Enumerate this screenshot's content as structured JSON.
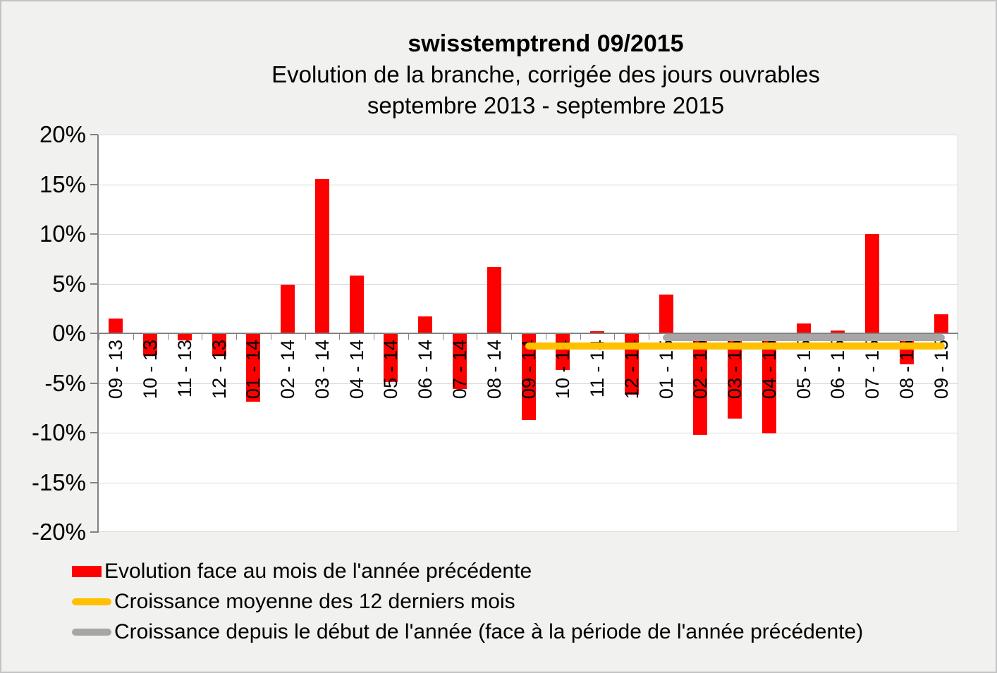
{
  "header": {
    "title": "swisstemptrend 09/2015",
    "subtitle1": "Evolution de la branche, corrigée des jours ouvrables",
    "subtitle2": "septembre 2013 - septembre 2015"
  },
  "chart_data": {
    "type": "bar",
    "title": "swisstemptrend 09/2015",
    "subtitle": "Evolution de la branche, corrigée des jours ouvrables septembre 2013 - septembre 2015",
    "categories": [
      "09 - 13",
      "10 - 13",
      "11 - 13",
      "12 - 13",
      "01 - 14",
      "02 - 14",
      "03 - 14",
      "04 - 14",
      "05 - 14",
      "06 - 14",
      "07 - 14",
      "08 - 14",
      "09 - 14",
      "10 - 14",
      "11 - 14",
      "12 - 14",
      "01 - 15",
      "02 - 15",
      "03 - 15",
      "04 - 15",
      "05 - 15",
      "06 - 15",
      "07 - 15",
      "08 - 15",
      "09 - 15"
    ],
    "series": [
      {
        "name": "Evolution face au mois de l'année précédente",
        "type": "bar",
        "color": "#ff0000",
        "values": [
          1.5,
          -2.2,
          -0.7,
          -2.3,
          -6.9,
          4.9,
          15.5,
          5.8,
          -4.9,
          1.7,
          -5.6,
          6.7,
          -8.7,
          -3.7,
          0.2,
          -6.2,
          3.9,
          -10.2,
          -8.6,
          -10.1,
          1.0,
          0.3,
          10.0,
          -3.1,
          1.9
        ]
      },
      {
        "name": "Croissance moyenne des 12 derniers mois",
        "type": "line",
        "color": "#ffc000",
        "value": -1.25,
        "from": "09 - 14",
        "to": "09 - 15"
      },
      {
        "name": "Croissance depuis le début de l'année (face à la période de l'année précédente)",
        "type": "line",
        "color": "#a6a6a6",
        "value": -0.45,
        "from": "01 - 15",
        "to": "09 - 15"
      }
    ],
    "ylim": [
      -20,
      20
    ],
    "ytick_step": 5,
    "ytick_labels": [
      "20%",
      "15%",
      "10%",
      "5%",
      "0%",
      "-5%",
      "-10%",
      "-15%",
      "-20%"
    ],
    "grid": true,
    "legend_position": "bottom-left"
  },
  "legend": {
    "items": [
      {
        "label": "Evolution face au mois de l'année précédente",
        "marker": "bar-swatch",
        "color": "#ff0000"
      },
      {
        "label": "Croissance moyenne des 12 derniers mois",
        "marker": "line-swatch",
        "color": "#ffc000"
      },
      {
        "label": "Croissance depuis le début de l'année (face à la période de l'année précédente)",
        "marker": "line-swatch",
        "color": "#a6a6a6"
      }
    ]
  },
  "colors": {
    "bar": "#ff0000",
    "avg12_line": "#ffc000",
    "ytd_line": "#a6a6a6",
    "gridline": "#d9d9d9",
    "axis": "#828282",
    "plot_bg": "#ffffff",
    "canvas_bg": "#f1f1f0"
  }
}
